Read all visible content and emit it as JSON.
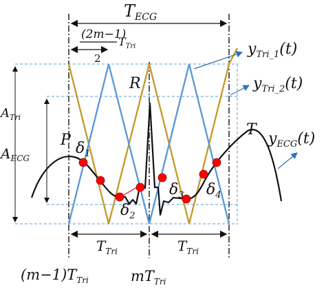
{
  "labels": {
    "t_ecg": {
      "main": "T",
      "sub": "ECG"
    },
    "half_period": {
      "num": "(2m−1)",
      "den": "2",
      "t": "T",
      "sub": "Tri"
    },
    "y_tri_1": {
      "y": "y",
      "sub": "Tri_1",
      "arg": "(t)"
    },
    "y_tri_2": {
      "y": "y",
      "sub": "Tri_2",
      "arg": "(t)"
    },
    "y_ecg": {
      "y": "y",
      "sub": "ECG",
      "arg": "(t)"
    },
    "r_peak": "R",
    "p_wave": "P",
    "t_wave": "T",
    "a_tri": {
      "main": "A",
      "sub": "Tri"
    },
    "a_ecg": {
      "main": "A",
      "sub": "ECG"
    },
    "delta_1": {
      "main": "δ",
      "sub": "1"
    },
    "delta_2": {
      "main": "δ",
      "sub": "2"
    },
    "delta_3": {
      "main": "δ",
      "sub": "3"
    },
    "delta_4": {
      "main": "δ",
      "sub": "4"
    },
    "t_tri_left": {
      "main": "T",
      "sub": "Tri"
    },
    "t_tri_right": {
      "main": "T",
      "sub": "Tri"
    },
    "axis_left": {
      "pre": "(m−1)T",
      "sub": "Tri"
    },
    "axis_mid": {
      "pre": "mT",
      "sub": "Tri"
    }
  },
  "colors": {
    "triangle_1": "#c79a2c",
    "triangle_2": "#5b9bd5",
    "ecg": "#111111",
    "intersection": "#ff0000",
    "guides": "#5b9bd5",
    "arrow": "#2e75b6"
  }
}
